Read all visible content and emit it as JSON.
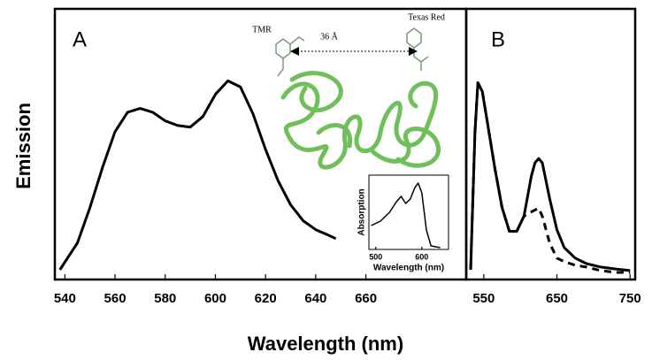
{
  "figure": {
    "x_label": "Wavelength (nm)",
    "y_label": "Emission"
  },
  "chart_data": [
    {
      "type": "line",
      "annotations": [
        "A",
        "TMR",
        "36 Å",
        "Texas Red"
      ],
      "x": [
        538,
        545,
        550,
        555,
        560,
        565,
        570,
        575,
        580,
        585,
        590,
        595,
        600,
        605,
        610,
        615,
        620,
        625,
        630,
        635,
        640,
        645,
        648
      ],
      "values": [
        3.6,
        13.5,
        26.6,
        41.4,
        54.6,
        61.8,
        63.2,
        61.8,
        58.6,
        56.9,
        56.3,
        60.2,
        68.4,
        73.4,
        71.1,
        61.2,
        48.0,
        36.5,
        27.6,
        21.7,
        18.4,
        16.4,
        15.1
      ],
      "color": "#000000",
      "xlim": [
        536,
        700
      ],
      "xticks": [
        540,
        560,
        580,
        600,
        620,
        640,
        660
      ],
      "ylim": [
        0,
        100
      ]
    },
    {
      "type": "line",
      "annotations": [
        "B"
      ],
      "x": [
        532,
        538,
        542,
        548,
        555,
        565,
        575,
        585,
        595,
        605,
        615,
        620,
        625,
        630,
        640,
        650,
        660,
        675,
        690,
        710,
        730,
        750
      ],
      "series": [
        {
          "color": "#000000",
          "style": "solid",
          "values": [
            3.6,
            54.6,
            72.7,
            69.4,
            57.9,
            41.4,
            26.6,
            17.8,
            17.8,
            23.4,
            38.2,
            43.1,
            44.7,
            43.1,
            29.9,
            18.4,
            11.8,
            7.9,
            5.9,
            4.6,
            3.9,
            3.3
          ]
        },
        {
          "color": "#000000",
          "style": "dashed",
          "values": [
            3.6,
            54.6,
            72.7,
            69.4,
            57.9,
            41.4,
            26.6,
            17.8,
            17.8,
            23.4,
            25.0,
            25.7,
            26.3,
            23.4,
            13.5,
            7.9,
            6.6,
            5.3,
            4.6,
            3.3,
            2.6,
            2.6
          ]
        }
      ],
      "xlim": [
        526,
        757
      ],
      "xticks": [
        550,
        650,
        750
      ],
      "ylim": [
        0,
        100
      ]
    },
    {
      "type": "line",
      "x_label": "Wavelength (nm)",
      "y_label": "Absorption",
      "x": [
        490,
        510,
        530,
        545,
        555,
        565,
        575,
        585,
        592,
        600,
        610,
        620,
        640
      ],
      "values": [
        32.1,
        38.1,
        50.0,
        64.3,
        71.4,
        61.9,
        67.9,
        83.3,
        89.3,
        76.2,
        26.2,
        4.8,
        2.4
      ],
      "color": "#000000",
      "xlim": [
        485,
        658
      ],
      "xticks": [
        500,
        600
      ],
      "ylim": [
        0,
        100
      ]
    }
  ]
}
